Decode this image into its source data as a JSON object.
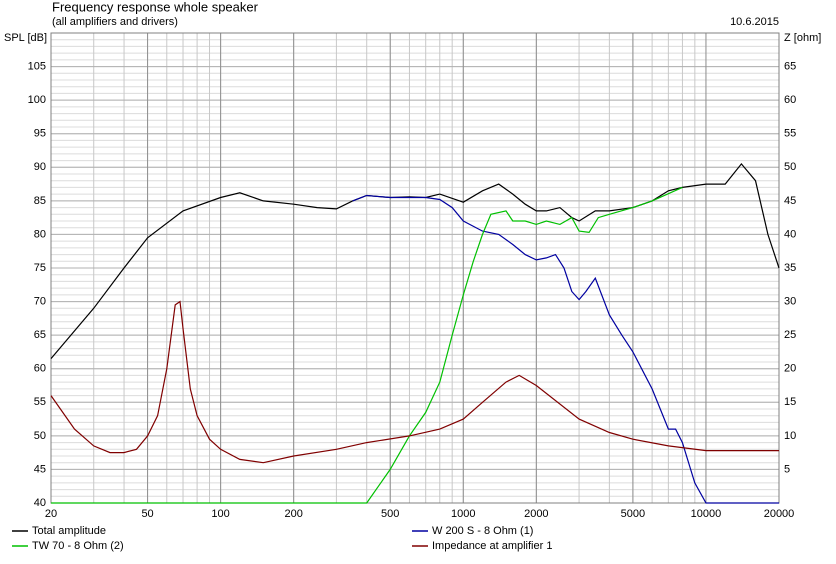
{
  "chart_data": {
    "type": "line",
    "title": "Frequency response whole speaker",
    "subtitle": "(all amplifiers and drivers)",
    "date": "10.6.2015",
    "y_label": "SPL [dB]",
    "y2_label": "Z [ohm]",
    "xscale": "log",
    "grid": true,
    "legend": "bottom",
    "xlim": [
      20,
      20000
    ],
    "xticks": [
      20,
      50,
      100,
      200,
      500,
      1000,
      2000,
      5000,
      10000,
      20000
    ],
    "ylim": [
      40,
      110
    ],
    "yticks": [
      40,
      45,
      50,
      55,
      60,
      65,
      70,
      75,
      80,
      85,
      90,
      95,
      100,
      105
    ],
    "y2lim": [
      0,
      70
    ],
    "y2ticks": [
      5,
      10,
      15,
      20,
      25,
      30,
      35,
      40,
      45,
      50,
      55,
      60,
      65
    ],
    "series": [
      {
        "name": "Total amplitude",
        "color": "#000000",
        "x": [
          20,
          30,
          40,
          50,
          70,
          100,
          120,
          150,
          200,
          250,
          300,
          350,
          400,
          500,
          600,
          700,
          800,
          1000,
          1200,
          1400,
          1600,
          1800,
          2000,
          2200,
          2500,
          2800,
          3000,
          3500,
          4000,
          5000,
          6000,
          7000,
          8000,
          10000,
          12000,
          14000,
          16000,
          18000,
          20000
        ],
        "values": [
          61.5,
          69,
          75,
          79.5,
          83.5,
          85.5,
          86.2,
          85,
          84.5,
          84,
          83.8,
          85,
          85.8,
          85.5,
          85.6,
          85.5,
          86,
          84.8,
          86.5,
          87.5,
          86,
          84.5,
          83.5,
          83.5,
          84,
          82.5,
          82,
          83.5,
          83.5,
          84,
          85,
          86.5,
          87,
          87.5,
          87.5,
          90.5,
          88,
          80,
          75
        ]
      },
      {
        "name": "W 200 S - 8 Ohm (1)",
        "color": "#0000a0",
        "x": [
          350,
          400,
          500,
          700,
          800,
          900,
          1000,
          1200,
          1400,
          1600,
          1800,
          2000,
          2200,
          2400,
          2600,
          2800,
          3000,
          3200,
          3500,
          4000,
          4500,
          5000,
          6000,
          7000,
          7500,
          8000,
          9000,
          10000,
          20000
        ],
        "values": [
          85,
          85.8,
          85.5,
          85.5,
          85.2,
          84,
          82,
          80.5,
          80,
          78.5,
          77,
          76.2,
          76.5,
          77,
          75,
          71.5,
          70.3,
          71.5,
          73.5,
          68,
          65,
          62.5,
          57,
          51,
          51,
          49,
          43,
          40,
          40
        ]
      },
      {
        "name": "TW 70 - 8 Ohm (2)",
        "color": "#00c000",
        "x": [
          20,
          400,
          500,
          600,
          700,
          800,
          900,
          1000,
          1100,
          1200,
          1300,
          1500,
          1600,
          1800,
          2000,
          2200,
          2500,
          2800,
          3000,
          3300,
          3600,
          4000,
          5000,
          6000,
          8000
        ],
        "values": [
          40,
          40,
          45,
          50,
          53.5,
          58,
          65,
          71,
          76,
          80,
          83,
          83.5,
          82,
          82,
          81.5,
          82,
          81.5,
          82.5,
          80.5,
          80.3,
          82.5,
          83,
          84,
          85,
          87
        ]
      },
      {
        "name": "Impedance at amplifier 1",
        "color": "#800000",
        "axis": "y2",
        "x": [
          20,
          25,
          30,
          35,
          40,
          45,
          50,
          55,
          60,
          65,
          68,
          70,
          75,
          80,
          90,
          100,
          120,
          150,
          200,
          300,
          400,
          600,
          800,
          1000,
          1200,
          1500,
          1700,
          2000,
          3000,
          4000,
          5000,
          7000,
          10000,
          20000
        ],
        "values": [
          16,
          11,
          8.5,
          7.5,
          7.5,
          8,
          10,
          13,
          20,
          29.5,
          30,
          26,
          17,
          13,
          9.5,
          8,
          6.5,
          6,
          7,
          8,
          9,
          10,
          11,
          12.5,
          15,
          18,
          19,
          17.5,
          12.5,
          10.5,
          9.5,
          8.5,
          7.8,
          7.8
        ]
      }
    ]
  }
}
